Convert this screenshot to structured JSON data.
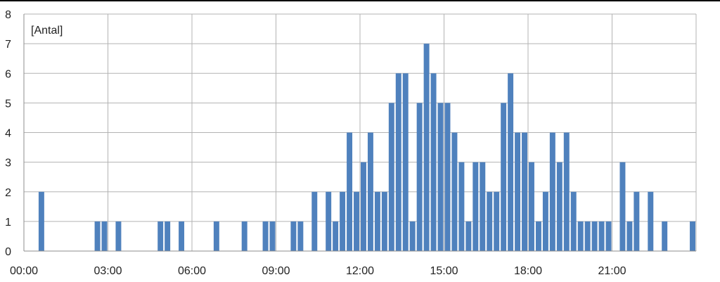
{
  "chart_data": {
    "type": "bar",
    "ylabel": "[Antal]",
    "ylim": [
      0,
      8
    ],
    "y_ticks": [
      "0",
      "1",
      "2",
      "3",
      "4",
      "5",
      "6",
      "7",
      "8"
    ],
    "xlim_hours": [
      0,
      24
    ],
    "x_ticks": [
      "00:00",
      "03:00",
      "06:00",
      "09:00",
      "12:00",
      "15:00",
      "18:00",
      "21:00"
    ],
    "bin_minutes": 15,
    "x": [
      "00:00",
      "00:15",
      "00:30",
      "00:45",
      "01:00",
      "01:15",
      "01:30",
      "01:45",
      "02:00",
      "02:15",
      "02:30",
      "02:45",
      "03:00",
      "03:15",
      "03:30",
      "03:45",
      "04:00",
      "04:15",
      "04:30",
      "04:45",
      "05:00",
      "05:15",
      "05:30",
      "05:45",
      "06:00",
      "06:15",
      "06:30",
      "06:45",
      "07:00",
      "07:15",
      "07:30",
      "07:45",
      "08:00",
      "08:15",
      "08:30",
      "08:45",
      "09:00",
      "09:15",
      "09:30",
      "09:45",
      "10:00",
      "10:15",
      "10:30",
      "10:45",
      "11:00",
      "11:15",
      "11:30",
      "11:45",
      "12:00",
      "12:15",
      "12:30",
      "12:45",
      "13:00",
      "13:15",
      "13:30",
      "13:45",
      "14:00",
      "14:15",
      "14:30",
      "14:45",
      "15:00",
      "15:15",
      "15:30",
      "15:45",
      "16:00",
      "16:15",
      "16:30",
      "16:45",
      "17:00",
      "17:15",
      "17:30",
      "17:45",
      "18:00",
      "18:15",
      "18:30",
      "18:45",
      "19:00",
      "19:15",
      "19:30",
      "19:45",
      "20:00",
      "20:15",
      "20:30",
      "20:45",
      "21:00",
      "21:15",
      "21:30",
      "21:45",
      "22:00",
      "22:15",
      "22:30",
      "22:45",
      "23:00",
      "23:15",
      "23:30",
      "23:45"
    ],
    "values": [
      0,
      0,
      2,
      0,
      0,
      0,
      0,
      0,
      0,
      0,
      1,
      1,
      0,
      1,
      0,
      0,
      0,
      0,
      0,
      1,
      1,
      0,
      1,
      0,
      0,
      0,
      0,
      1,
      0,
      0,
      0,
      1,
      0,
      0,
      1,
      1,
      0,
      0,
      1,
      1,
      0,
      2,
      0,
      2,
      1,
      2,
      4,
      2,
      3,
      4,
      2,
      2,
      5,
      6,
      6,
      1,
      5,
      7,
      6,
      5,
      5,
      4,
      3,
      1,
      3,
      3,
      2,
      2,
      5,
      6,
      4,
      4,
      3,
      1,
      2,
      4,
      3,
      4,
      2,
      1,
      1,
      1,
      1,
      1,
      0,
      3,
      1,
      2,
      0,
      2,
      0,
      1,
      0,
      0,
      0,
      1
    ],
    "bar_color": "#4F81BD",
    "grid": true,
    "legend": "none"
  }
}
